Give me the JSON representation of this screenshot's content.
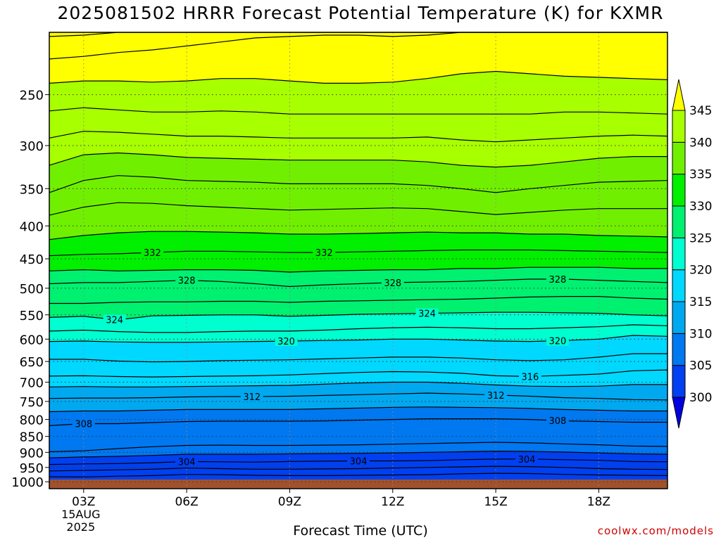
{
  "title": "2025081502 HRRR Forecast Potential Temperature (K) for KXMR",
  "credit": "coolwx.com/models",
  "chart_data": {
    "type": "heatmap",
    "title": "2025081502 HRRR Forecast Potential Temperature (K) for KXMR",
    "xlabel": "Forecast Time (UTC)",
    "ylabel": "",
    "x_range_hours": [
      2,
      20
    ],
    "x_ticks": [
      {
        "hour": 3,
        "label": "03Z",
        "date_label": "15AUG",
        "year_label": "2025"
      },
      {
        "hour": 6,
        "label": "06Z"
      },
      {
        "hour": 9,
        "label": "09Z"
      },
      {
        "hour": 12,
        "label": "12Z"
      },
      {
        "hour": 15,
        "label": "15Z"
      },
      {
        "hour": 18,
        "label": "18Z"
      }
    ],
    "y_scale": "log-pressure",
    "y_range_hpa": [
      1025,
      200
    ],
    "y_ticks": [
      250,
      300,
      350,
      400,
      450,
      500,
      550,
      600,
      650,
      700,
      750,
      800,
      850,
      900,
      950,
      1000
    ],
    "grid": true,
    "colorbar": {
      "levels": [
        300,
        305,
        310,
        315,
        320,
        325,
        330,
        335,
        340,
        345
      ],
      "labels": [
        "300",
        "305",
        "310",
        "315",
        "320",
        "325",
        "330",
        "335",
        "340",
        "345"
      ],
      "colors": [
        "#0000e0",
        "#0040f0",
        "#0078f0",
        "#00a8f0",
        "#00d8ff",
        "#00ffd0",
        "#00f070",
        "#00f000",
        "#70f000",
        "#a8ff00",
        "#ffff00"
      ],
      "extend": "both"
    },
    "ground_color": "#a0522d",
    "times": [
      2,
      3,
      4,
      5,
      6,
      7,
      8,
      9,
      10,
      11,
      12,
      13,
      14,
      15,
      16,
      17,
      18,
      19,
      20
    ],
    "isentropes": [
      {
        "theta": 302,
        "pressures": [
          982,
          983,
          980,
          978,
          974,
          975,
          977,
          978,
          978,
          977,
          976,
          975,
          972,
          970,
          971,
          974,
          976,
          977,
          978
        ]
      },
      {
        "theta": 303,
        "pressures": [
          962,
          960,
          958,
          956,
          952,
          954,
          956,
          956,
          955,
          954,
          952,
          950,
          948,
          946,
          947,
          950,
          954,
          956,
          957
        ]
      },
      {
        "theta": 304,
        "pressures": [
          940,
          938,
          937,
          934,
          930,
          931,
          932,
          930,
          929,
          928,
          928,
          927,
          924,
          922,
          922,
          924,
          926,
          930,
          931
        ]
      },
      {
        "theta": 305,
        "pressures": [
          918,
          915,
          913,
          910,
          906,
          906,
          906,
          905,
          904,
          903,
          902,
          900,
          898,
          896,
          897,
          899,
          902,
          905,
          906
        ]
      },
      {
        "theta": 306,
        "pressures": [
          898,
          895,
          888,
          882,
          878,
          877,
          878,
          878,
          877,
          876,
          874,
          872,
          870,
          868,
          870,
          873,
          876,
          880,
          881
        ]
      },
      {
        "theta": 308,
        "pressures": [
          818,
          812,
          812,
          809,
          806,
          805,
          805,
          805,
          804,
          802,
          800,
          798,
          798,
          798,
          800,
          804,
          806,
          808,
          808
        ]
      },
      {
        "theta": 310,
        "pressures": [
          778,
          776,
          776,
          774,
          772,
          772,
          772,
          772,
          770,
          768,
          766,
          765,
          766,
          767,
          769,
          772,
          774,
          776,
          776
        ]
      },
      {
        "theta": 312,
        "pressures": [
          742,
          741,
          741,
          740,
          738,
          737,
          737,
          736,
          734,
          732,
          730,
          728,
          730,
          733,
          736,
          740,
          742,
          745,
          746
        ]
      },
      {
        "theta": 314,
        "pressures": [
          712,
          711,
          712,
          712,
          711,
          710,
          709,
          708,
          705,
          702,
          700,
          700,
          703,
          707,
          710,
          711,
          710,
          706,
          706
        ]
      },
      {
        "theta": 316,
        "pressures": [
          685,
          684,
          686,
          687,
          686,
          685,
          684,
          682,
          679,
          676,
          674,
          675,
          678,
          684,
          686,
          683,
          680,
          672,
          670
        ]
      },
      {
        "theta": 318,
        "pressures": [
          645,
          645,
          649,
          651,
          650,
          648,
          647,
          646,
          644,
          642,
          640,
          640,
          642,
          646,
          648,
          646,
          640,
          632,
          632
        ]
      },
      {
        "theta": 320,
        "pressures": [
          605,
          604,
          606,
          607,
          607,
          606,
          605,
          604,
          603,
          602,
          600,
          600,
          602,
          604,
          605,
          603,
          600,
          592,
          594
        ]
      },
      {
        "theta": 322,
        "pressures": [
          583,
          581,
          584,
          586,
          586,
          584,
          583,
          583,
          581,
          578,
          576,
          575,
          576,
          578,
          578,
          576,
          574,
          570,
          572
        ]
      },
      {
        "theta": 324,
        "pressures": [
          555,
          553,
          560,
          552,
          551,
          550,
          550,
          553,
          551,
          549,
          548,
          547,
          546,
          545,
          545,
          546,
          547,
          550,
          552
        ]
      },
      {
        "theta": 326,
        "pressures": [
          528,
          528,
          526,
          525,
          525,
          524,
          524,
          526,
          524,
          523,
          522,
          521,
          520,
          518,
          516,
          515,
          515,
          518,
          520
        ]
      },
      {
        "theta": 328,
        "pressures": [
          492,
          490,
          490,
          488,
          486,
          488,
          492,
          497,
          494,
          492,
          490,
          489,
          488,
          486,
          484,
          484,
          486,
          488,
          490
        ]
      },
      {
        "theta": 330,
        "pressures": [
          470,
          468,
          470,
          469,
          468,
          468,
          469,
          472,
          470,
          469,
          468,
          468,
          466,
          466,
          464,
          464,
          464,
          466,
          466
        ]
      },
      {
        "theta": 332,
        "pressures": [
          445,
          443,
          442,
          440,
          438,
          438,
          439,
          440,
          440,
          439,
          438,
          437,
          436,
          436,
          436,
          437,
          438,
          439,
          440
        ]
      },
      {
        "theta": 334,
        "pressures": [
          420,
          414,
          410,
          408,
          408,
          409,
          410,
          412,
          412,
          411,
          410,
          409,
          410,
          410,
          412,
          412,
          414,
          415,
          416
        ]
      },
      {
        "theta": 336,
        "pressures": [
          385,
          374,
          368,
          369,
          372,
          374,
          376,
          378,
          377,
          376,
          375,
          376,
          380,
          384,
          381,
          378,
          376,
          376,
          376
        ]
      },
      {
        "theta": 337,
        "pressures": [
          355,
          340,
          334,
          336,
          340,
          341,
          342,
          344,
          344,
          344,
          344,
          346,
          350,
          355,
          350,
          346,
          342,
          341,
          340
        ]
      },
      {
        "theta": 339,
        "pressures": [
          322,
          310,
          308,
          310,
          313,
          314,
          315,
          316,
          316,
          316,
          316,
          318,
          322,
          324,
          322,
          318,
          314,
          312,
          312
        ]
      },
      {
        "theta": 341,
        "pressures": [
          292,
          285,
          286,
          288,
          290,
          290,
          291,
          292,
          292,
          292,
          292,
          291,
          294,
          296,
          294,
          292,
          290,
          289,
          290
        ]
      },
      {
        "theta": 343,
        "pressures": [
          265,
          262,
          264,
          266,
          266,
          265,
          266,
          268,
          268,
          268,
          268,
          268,
          268,
          268,
          268,
          266,
          266,
          267,
          268
        ]
      },
      {
        "theta": 345,
        "pressures": [
          240,
          238,
          238,
          239,
          238,
          236,
          236,
          238,
          240,
          240,
          239,
          236,
          232,
          230,
          232,
          234,
          235,
          236,
          237
        ]
      },
      {
        "theta": 347,
        "pressures": [
          220,
          218,
          215,
          213,
          210,
          207,
          204,
          203,
          202,
          202,
          203,
          202,
          200,
          200,
          200,
          200,
          200,
          200,
          200
        ]
      },
      {
        "theta": 349,
        "pressures": [
          203,
          202,
          200,
          200,
          200,
          200,
          200,
          200,
          200,
          200,
          200,
          200,
          200,
          200,
          200,
          200,
          200,
          200,
          200
        ]
      }
    ],
    "contour_labels": [
      {
        "theta": 332,
        "time": 5.0,
        "text": "332"
      },
      {
        "theta": 332,
        "time": 10.0,
        "text": "332"
      },
      {
        "theta": 328,
        "time": 6.0,
        "text": "328"
      },
      {
        "theta": 328,
        "time": 12.0,
        "text": "328"
      },
      {
        "theta": 328,
        "time": 16.8,
        "text": "328"
      },
      {
        "theta": 324,
        "time": 3.9,
        "text": "324"
      },
      {
        "theta": 324,
        "time": 13.0,
        "text": "324"
      },
      {
        "theta": 320,
        "time": 8.9,
        "text": "320"
      },
      {
        "theta": 320,
        "time": 16.8,
        "text": "320"
      },
      {
        "theta": 316,
        "time": 16.0,
        "text": "316"
      },
      {
        "theta": 312,
        "time": 7.9,
        "text": "312"
      },
      {
        "theta": 312,
        "time": 15.0,
        "text": "312"
      },
      {
        "theta": 308,
        "time": 3.0,
        "text": "308"
      },
      {
        "theta": 308,
        "time": 16.8,
        "text": "308"
      },
      {
        "theta": 304,
        "time": 6.0,
        "text": "304"
      },
      {
        "theta": 304,
        "time": 11.0,
        "text": "304"
      },
      {
        "theta": 304,
        "time": 15.9,
        "text": "304"
      }
    ]
  }
}
